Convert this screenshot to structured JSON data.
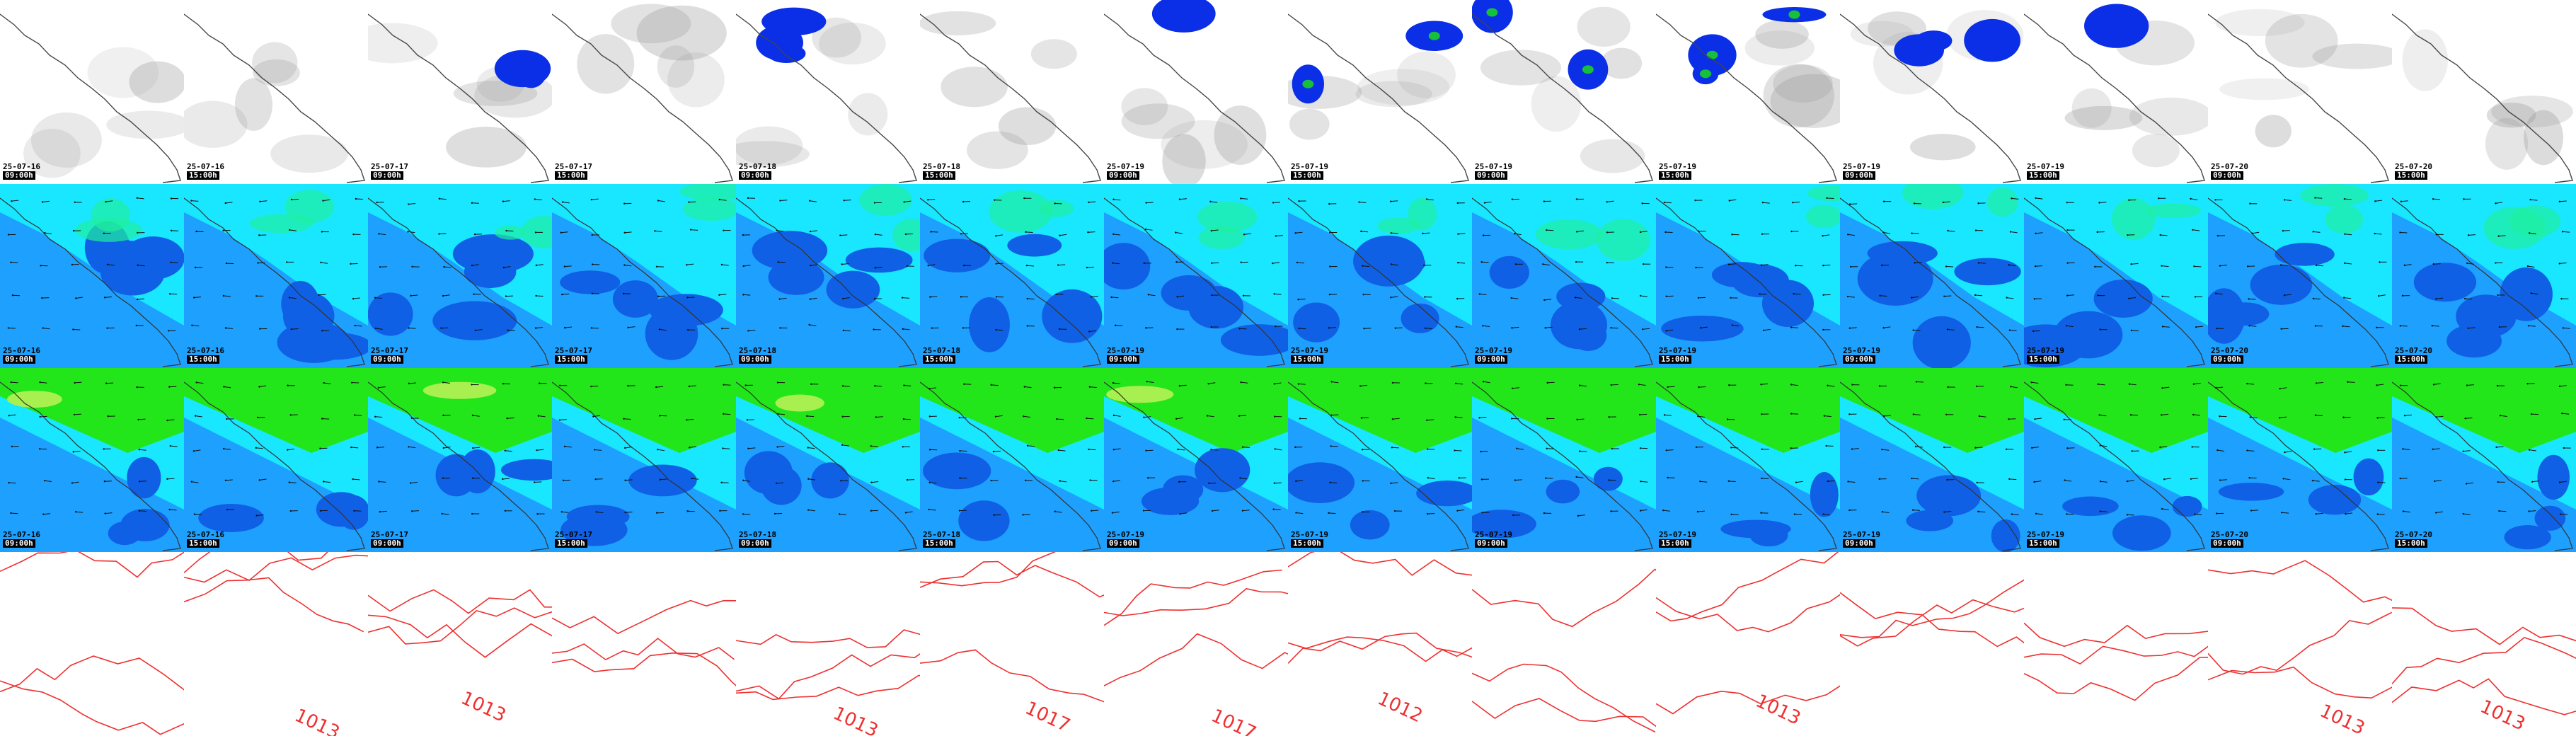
{
  "colors": {
    "precip_bg": "#ffffff",
    "precip_cloud": "#9a9a9a",
    "precip_rain": "#0a2fe6",
    "precip_heavy": "#17c03a",
    "wind_light": "#19e6ff",
    "wind_mid": "#1ea0ff",
    "wind_dark": "#1060e6",
    "wind_green": "#20f0a0",
    "gust_green": "#22e61a",
    "gust_yellow": "#a8f050",
    "coast": "#444444",
    "arrow": "#111111",
    "isobar": "#ee3030"
  },
  "rows": [
    {
      "type": "precip",
      "tiles": [
        {
          "date": "25-07-16",
          "time": "09:00h"
        },
        {
          "date": "25-07-16",
          "time": "15:00h"
        },
        {
          "date": "25-07-17",
          "time": "09:00h"
        },
        {
          "date": "25-07-17",
          "time": "15:00h"
        },
        {
          "date": "25-07-18",
          "time": "09:00h"
        },
        {
          "date": "25-07-18",
          "time": "15:00h"
        },
        {
          "date": "25-07-19",
          "time": "09:00h"
        },
        {
          "date": "25-07-19",
          "time": "15:00h"
        },
        {
          "date": "25-07-19",
          "time": "09:00h"
        },
        {
          "date": "25-07-19",
          "time": "15:00h"
        },
        {
          "date": "25-07-19",
          "time": "09:00h"
        },
        {
          "date": "25-07-19",
          "time": "15:00h"
        },
        {
          "date": "25-07-20",
          "time": "09:00h"
        },
        {
          "date": "25-07-20",
          "time": "15:00h"
        }
      ]
    },
    {
      "type": "wind",
      "tiles": [
        {
          "date": "25-07-16",
          "time": "09:00h"
        },
        {
          "date": "25-07-16",
          "time": "15:00h"
        },
        {
          "date": "25-07-17",
          "time": "09:00h"
        },
        {
          "date": "25-07-17",
          "time": "15:00h"
        },
        {
          "date": "25-07-18",
          "time": "09:00h"
        },
        {
          "date": "25-07-18",
          "time": "15:00h"
        },
        {
          "date": "25-07-19",
          "time": "09:00h"
        },
        {
          "date": "25-07-19",
          "time": "15:00h"
        },
        {
          "date": "25-07-19",
          "time": "09:00h"
        },
        {
          "date": "25-07-19",
          "time": "15:00h"
        },
        {
          "date": "25-07-19",
          "time": "09:00h"
        },
        {
          "date": "25-07-19",
          "time": "15:00h"
        },
        {
          "date": "25-07-20",
          "time": "09:00h"
        },
        {
          "date": "25-07-20",
          "time": "15:00h"
        }
      ]
    },
    {
      "type": "gust",
      "tiles": [
        {
          "date": "25-07-16",
          "time": "09:00h"
        },
        {
          "date": "25-07-16",
          "time": "15:00h"
        },
        {
          "date": "25-07-17",
          "time": "09:00h"
        },
        {
          "date": "25-07-17",
          "time": "15:00h"
        },
        {
          "date": "25-07-18",
          "time": "09:00h"
        },
        {
          "date": "25-07-18",
          "time": "15:00h"
        },
        {
          "date": "25-07-19",
          "time": "09:00h"
        },
        {
          "date": "25-07-19",
          "time": "15:00h"
        },
        {
          "date": "25-07-19",
          "time": "09:00h"
        },
        {
          "date": "25-07-19",
          "time": "15:00h"
        },
        {
          "date": "25-07-19",
          "time": "09:00h"
        },
        {
          "date": "25-07-19",
          "time": "15:00h"
        },
        {
          "date": "25-07-20",
          "time": "09:00h"
        },
        {
          "date": "25-07-20",
          "time": "15:00h"
        }
      ]
    },
    {
      "type": "pressure",
      "labels": [
        "1013",
        "1013",
        "1013",
        "1017",
        "1017",
        "1012",
        "1013",
        "1013",
        "1013"
      ]
    }
  ]
}
